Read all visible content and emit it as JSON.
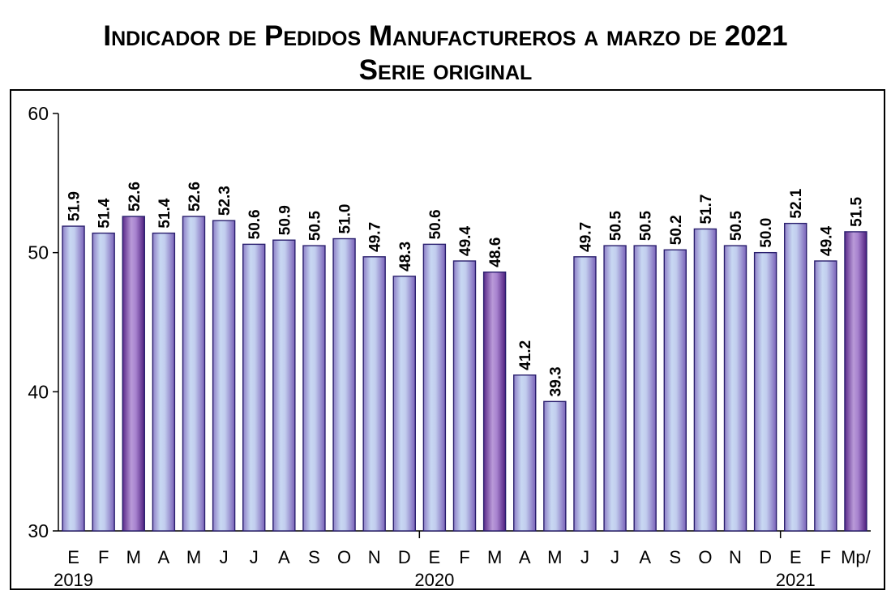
{
  "title": {
    "line1": "Indicador de Pedidos Manufactureros a marzo de 2021",
    "line2": "Serie original"
  },
  "chart_data": {
    "type": "bar",
    "title": "Indicador de Pedidos Manufactureros a marzo de 2021",
    "subtitle": "Serie original",
    "categories": [
      "E",
      "F",
      "M",
      "A",
      "M",
      "J",
      "J",
      "A",
      "S",
      "O",
      "N",
      "D",
      "E",
      "F",
      "M",
      "A",
      "M",
      "J",
      "J",
      "A",
      "S",
      "O",
      "N",
      "D",
      "E",
      "F",
      "Mp/"
    ],
    "values": [
      51.9,
      51.4,
      52.6,
      51.4,
      52.6,
      52.3,
      50.6,
      50.9,
      50.5,
      51.0,
      49.7,
      48.3,
      50.6,
      49.4,
      48.6,
      41.2,
      39.3,
      49.7,
      50.5,
      50.5,
      50.2,
      51.7,
      50.5,
      50.0,
      52.1,
      49.4,
      51.5
    ],
    "value_labels": [
      "51.9",
      "51.4",
      "52.6",
      "51.4",
      "52.6",
      "52.3",
      "50.6",
      "50.9",
      "50.5",
      "51.0",
      "49.7",
      "48.3",
      "50.6",
      "49.4",
      "48.6",
      "41.2",
      "39.3",
      "49.7",
      "50.5",
      "50.5",
      "50.2",
      "51.7",
      "50.5",
      "50.0",
      "52.1",
      "49.4",
      "51.5"
    ],
    "highlighted": [
      false,
      false,
      true,
      false,
      false,
      false,
      false,
      false,
      false,
      false,
      false,
      false,
      false,
      false,
      true,
      false,
      false,
      false,
      false,
      false,
      false,
      false,
      false,
      false,
      false,
      false,
      true
    ],
    "year_labels": [
      {
        "label": "2019",
        "start_index": 0
      },
      {
        "label": "2020",
        "start_index": 12
      },
      {
        "label": "2021",
        "start_index": 24
      }
    ],
    "ylim": [
      30,
      60
    ],
    "yticks": [
      30,
      40,
      50,
      60
    ],
    "xlabel": "",
    "ylabel": "",
    "grid": false,
    "colors": {
      "bar_light": "#c6d3ee",
      "bar_mid": "#a89bd5",
      "bar_dark": "#7a5fb3",
      "bar_highlight_dark": "#5a2a8a",
      "bar_highlight_light": "#b99ad8",
      "bar_border": "#2a1f6e",
      "axis": "#000000"
    }
  }
}
